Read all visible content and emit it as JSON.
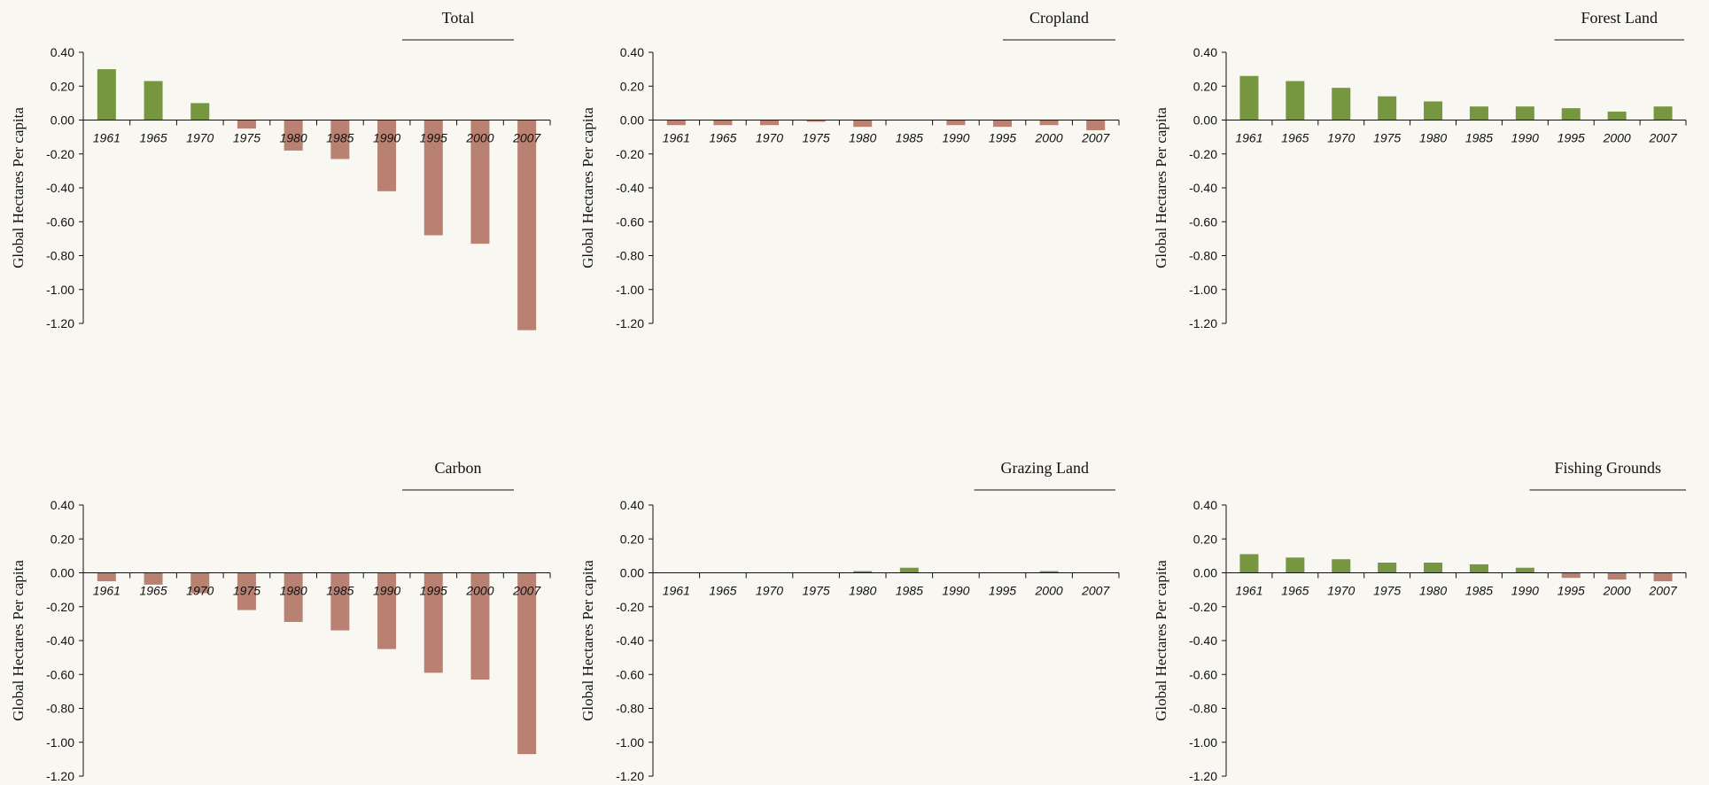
{
  "colors": {
    "positive": "#76963f",
    "negative": "#b98172",
    "background": "#f9f7f1"
  },
  "chart_data": [
    {
      "type": "bar",
      "title": "Total",
      "ylabel": "Global Hectares Per capita",
      "ylim": [
        -1.2,
        0.4
      ],
      "yticks": [
        "0.40",
        "0.20",
        "0.00",
        "-0.20",
        "-0.40",
        "-0.60",
        "-0.80",
        "-1.00",
        "-1.20"
      ],
      "categories": [
        "1961",
        "1965",
        "1970",
        "1975",
        "1980",
        "1985",
        "1990",
        "1995",
        "2000",
        "2007"
      ],
      "values": [
        0.3,
        0.23,
        0.1,
        -0.05,
        -0.18,
        -0.23,
        -0.42,
        -0.68,
        -0.73,
        -1.24
      ]
    },
    {
      "type": "bar",
      "title": "Cropland",
      "ylabel": "Global Hectares Per capita",
      "ylim": [
        -1.2,
        0.4
      ],
      "yticks": [
        "0.40",
        "0.20",
        "0.00",
        "-0.20",
        "-0.40",
        "-0.60",
        "-0.80",
        "-1.00",
        "-1.20"
      ],
      "categories": [
        "1961",
        "1965",
        "1970",
        "1975",
        "1980",
        "1985",
        "1990",
        "1995",
        "2000",
        "2007"
      ],
      "values": [
        -0.03,
        -0.03,
        -0.03,
        -0.01,
        -0.04,
        0.0,
        -0.03,
        -0.04,
        -0.03,
        -0.06
      ]
    },
    {
      "type": "bar",
      "title": "Forest Land",
      "ylabel": "Global Hectares Per capita",
      "ylim": [
        -1.2,
        0.4
      ],
      "yticks": [
        "0.40",
        "0.20",
        "0.00",
        "-0.20",
        "-0.40",
        "-0.60",
        "-0.80",
        "-1.00",
        "-1.20"
      ],
      "categories": [
        "1961",
        "1965",
        "1970",
        "1975",
        "1980",
        "1985",
        "1990",
        "1995",
        "2000",
        "2007"
      ],
      "values": [
        0.26,
        0.23,
        0.19,
        0.14,
        0.11,
        0.08,
        0.08,
        0.07,
        0.05,
        0.08
      ]
    },
    {
      "type": "bar",
      "title": "Carbon",
      "ylabel": "Global Hectares Per capita",
      "ylim": [
        -1.2,
        0.4
      ],
      "yticks": [
        "0.40",
        "0.20",
        "0.00",
        "-0.20",
        "-0.40",
        "-0.60",
        "-0.80",
        "-1.00",
        "-1.20"
      ],
      "categories": [
        "1961",
        "1965",
        "1970",
        "1975",
        "1980",
        "1985",
        "1990",
        "1995",
        "2000",
        "2007"
      ],
      "values": [
        -0.05,
        -0.07,
        -0.12,
        -0.22,
        -0.29,
        -0.34,
        -0.45,
        -0.59,
        -0.63,
        -1.07
      ]
    },
    {
      "type": "bar",
      "title": "Grazing Land",
      "ylabel": "Global Hectares Per capita",
      "ylim": [
        -1.2,
        0.4
      ],
      "yticks": [
        "0.40",
        "0.20",
        "0.00",
        "-0.20",
        "-0.40",
        "-0.60",
        "-0.80",
        "-1.00",
        "-1.20"
      ],
      "categories": [
        "1961",
        "1965",
        "1970",
        "1975",
        "1980",
        "1985",
        "1990",
        "1995",
        "2000",
        "2007"
      ],
      "values": [
        0.0,
        0.0,
        0.0,
        0.0,
        0.01,
        0.03,
        0.0,
        0.0,
        0.01,
        0.0
      ]
    },
    {
      "type": "bar",
      "title": "Fishing Grounds",
      "ylabel": "Global Hectares Per capita",
      "ylim": [
        -1.2,
        0.4
      ],
      "yticks": [
        "0.40",
        "0.20",
        "0.00",
        "-0.20",
        "-0.40",
        "-0.60",
        "-0.80",
        "-1.00",
        "-1.20"
      ],
      "categories": [
        "1961",
        "1965",
        "1970",
        "1975",
        "1980",
        "1985",
        "1990",
        "1995",
        "2000",
        "2007"
      ],
      "values": [
        0.11,
        0.09,
        0.08,
        0.06,
        0.06,
        0.05,
        0.03,
        -0.03,
        -0.04,
        -0.05
      ]
    }
  ]
}
